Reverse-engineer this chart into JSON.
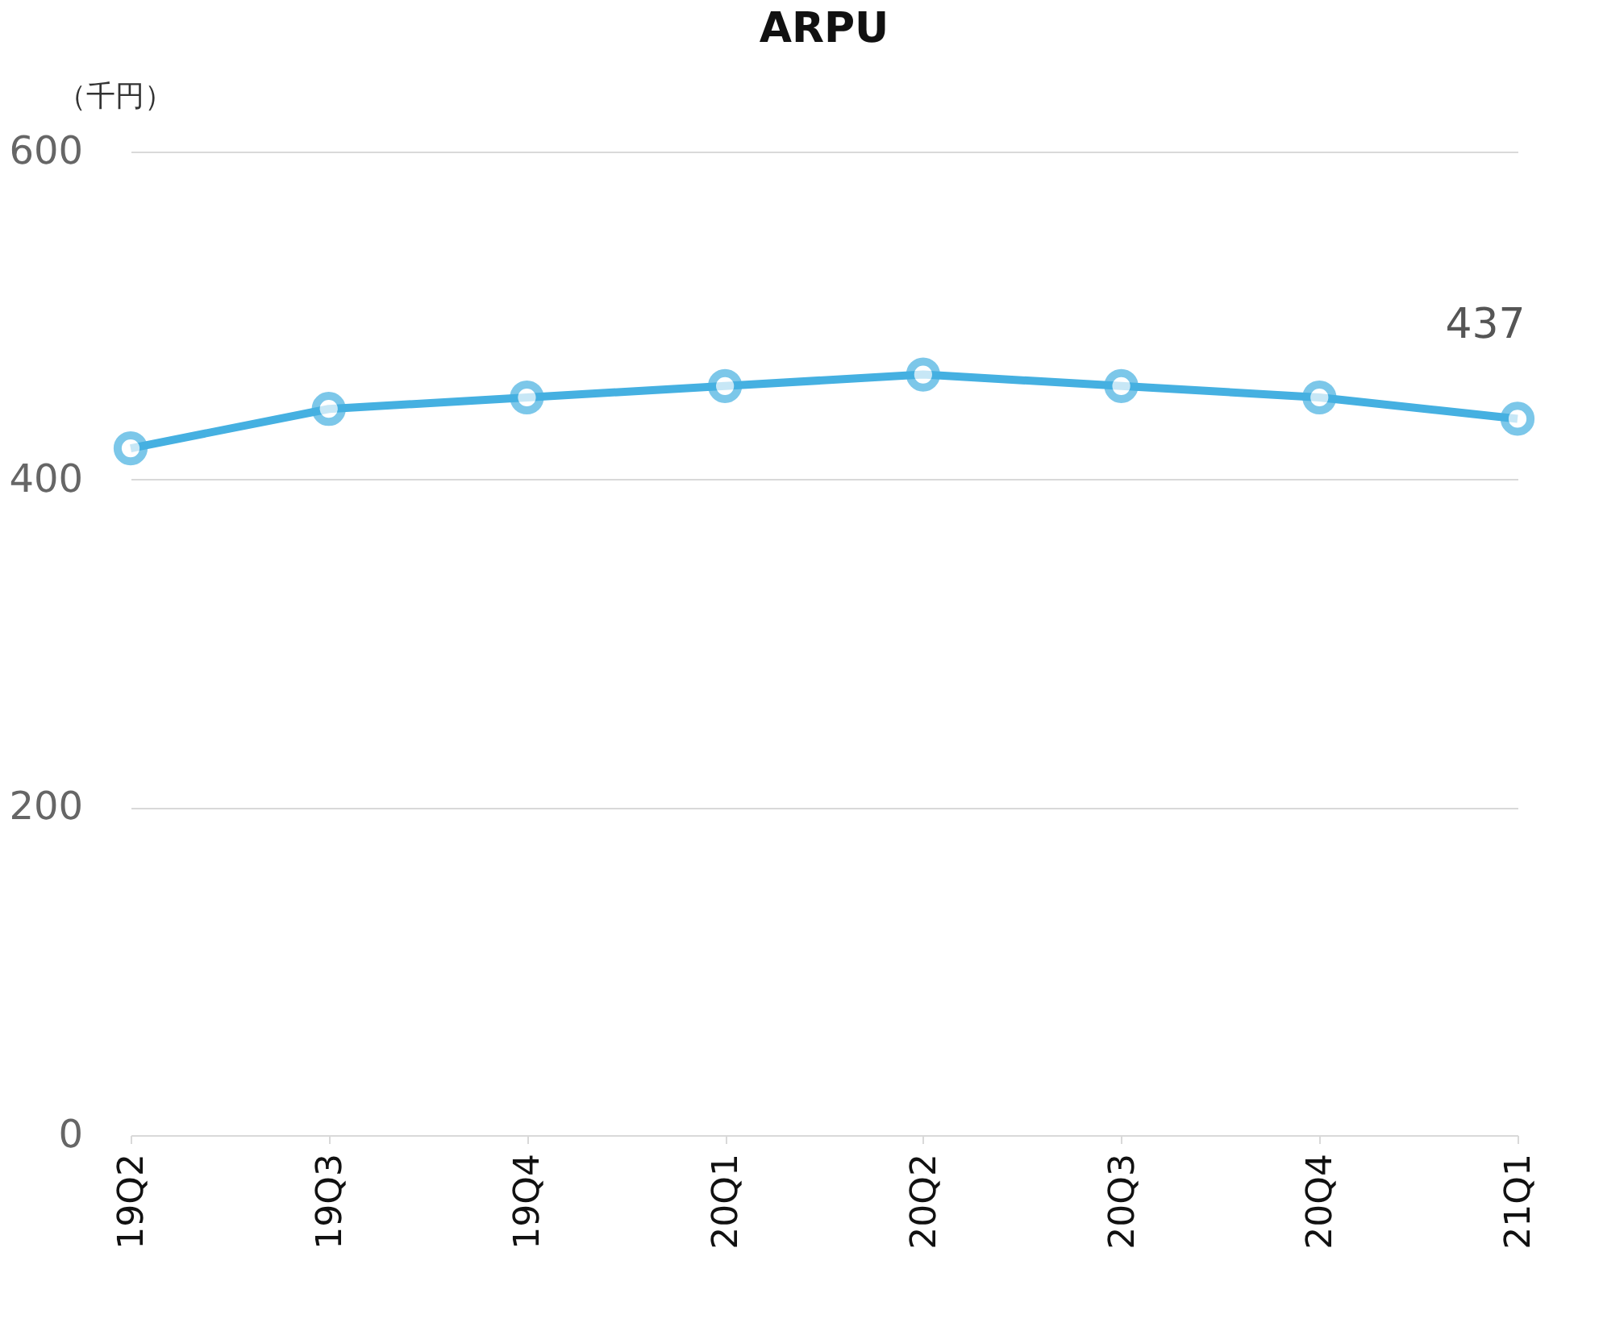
{
  "chart_data": {
    "type": "line",
    "title": "ARPU",
    "ylabel": "（千円）",
    "categories": [
      "19Q2",
      "19Q3",
      "19Q4",
      "20Q1",
      "20Q2",
      "20Q3",
      "20Q4",
      "21Q1"
    ],
    "series": [
      {
        "color": "#45b0e1",
        "values": [
          419,
          443,
          450,
          457,
          464,
          457,
          450,
          437
        ],
        "value_labels": [
          null,
          null,
          null,
          null,
          null,
          null,
          null,
          "437"
        ]
      }
    ],
    "ylim": [
      0,
      600
    ],
    "yticks": [
      0,
      200,
      400,
      600
    ],
    "grid": "y",
    "legend": false,
    "marker": "circle",
    "line_style": "solid"
  }
}
